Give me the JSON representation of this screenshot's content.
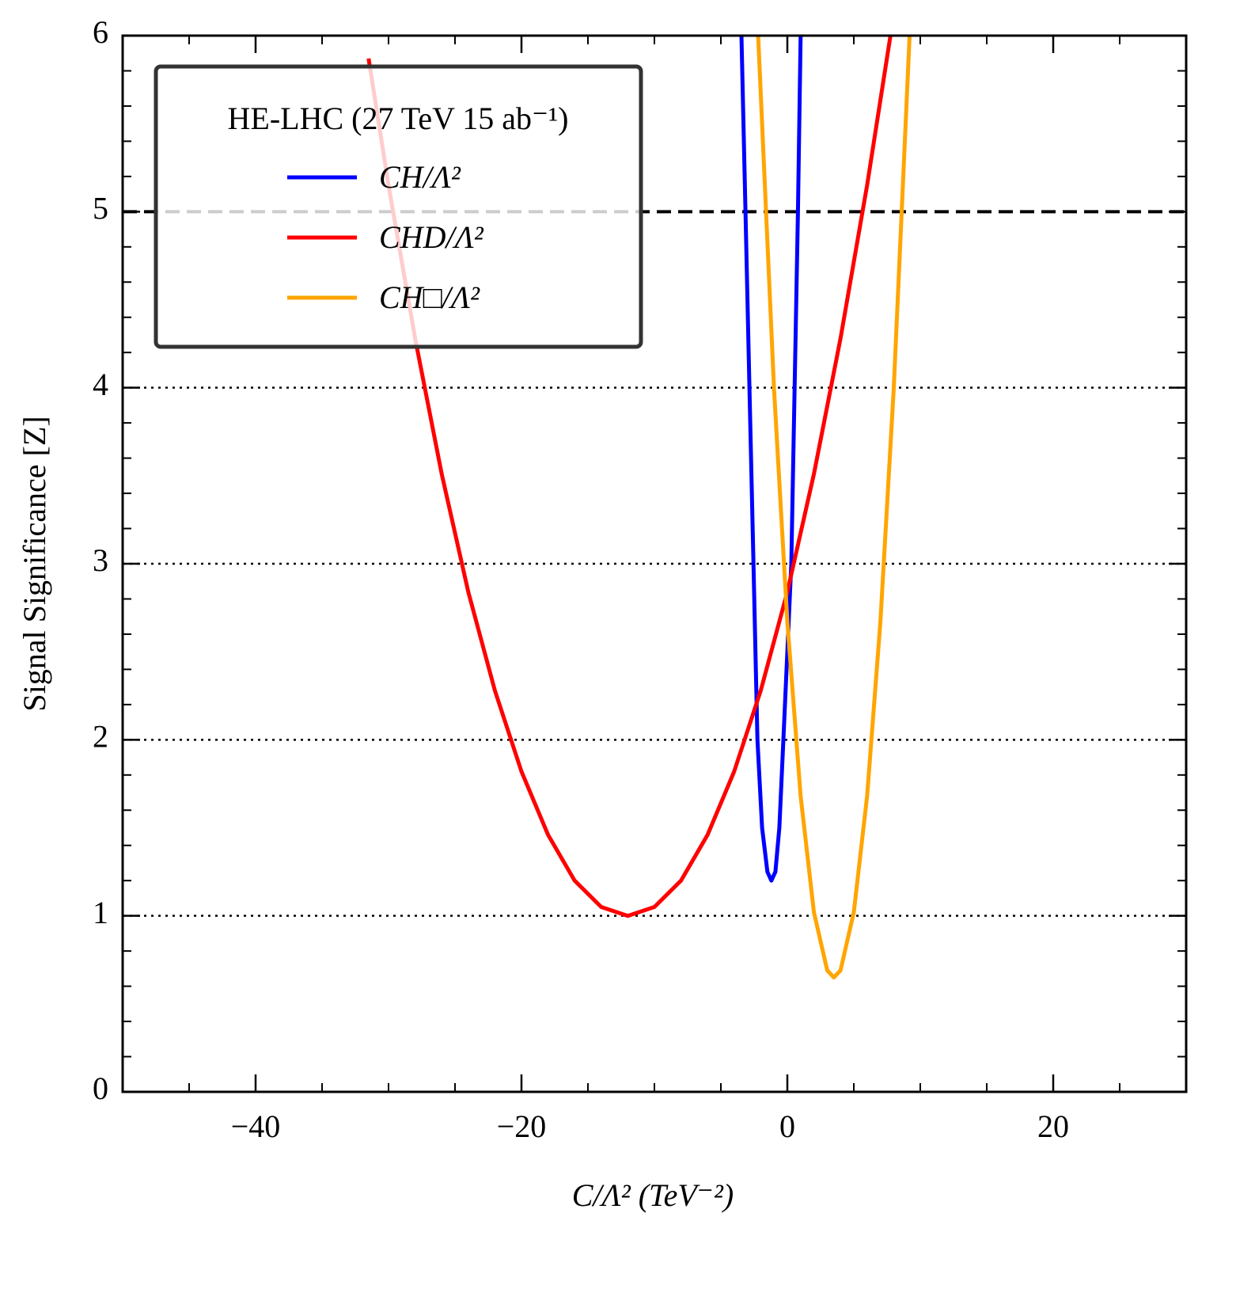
{
  "chart_data": {
    "type": "line",
    "xlabel": "C/Λ² (TeV⁻²)",
    "ylabel": "Signal Significance [Z]",
    "legend_title": "HE-LHC (27 TeV 15 ab⁻¹)",
    "legend": "upper left",
    "xlim": [
      -50,
      30
    ],
    "ylim": [
      0,
      6
    ],
    "xticks": [
      {
        "value": -40,
        "label": "−40"
      },
      {
        "value": -20,
        "label": "−20"
      },
      0,
      20
    ],
    "yticks": [
      0,
      1,
      2,
      3,
      4,
      5,
      6
    ],
    "hlines": [
      {
        "y": 5,
        "style": "dashed"
      },
      {
        "y": 4,
        "style": "dotted"
      },
      {
        "y": 3,
        "style": "dotted"
      },
      {
        "y": 2,
        "style": "dotted"
      },
      {
        "y": 1,
        "style": "dotted"
      }
    ],
    "series": [
      {
        "name": "CH/Λ²",
        "color": "#0000ff",
        "x": [
          -3.45,
          -3.15,
          -2.85,
          -2.55,
          -2.25,
          -1.9,
          -1.5,
          -1.2,
          -0.9,
          -0.6,
          -0.3,
          0.3,
          0.55,
          0.8,
          1.0
        ],
        "values": [
          6.0,
          5.0,
          4.0,
          3.0,
          2.0,
          1.5,
          1.25,
          1.2,
          1.25,
          1.5,
          2.0,
          3.0,
          4.0,
          5.0,
          6.0
        ]
      },
      {
        "name": "CHD/Λ²",
        "color": "#ff0000",
        "x": [
          -31.5,
          -30,
          -28,
          -26,
          -24,
          -22,
          -20,
          -18,
          -16,
          -14,
          -12,
          -10,
          -8,
          -6,
          -4,
          -2,
          0,
          2,
          4,
          6,
          7.8
        ],
        "values": [
          5.87,
          5.15,
          4.28,
          3.51,
          2.84,
          2.28,
          1.82,
          1.46,
          1.2,
          1.05,
          1.0,
          1.05,
          1.2,
          1.46,
          1.82,
          2.28,
          2.84,
          3.51,
          4.28,
          5.15,
          6.02
        ]
      },
      {
        "name": "CH□/Λ²",
        "color": "#ffa500",
        "x": [
          -2.2,
          -1,
          0,
          1,
          2,
          3,
          3.5,
          4,
          5,
          6,
          7,
          8,
          9.2
        ],
        "values": [
          6.01,
          3.99,
          2.67,
          1.68,
          1.02,
          0.69,
          0.65,
          0.69,
          1.02,
          1.68,
          2.67,
          3.99,
          6.01
        ]
      }
    ]
  }
}
